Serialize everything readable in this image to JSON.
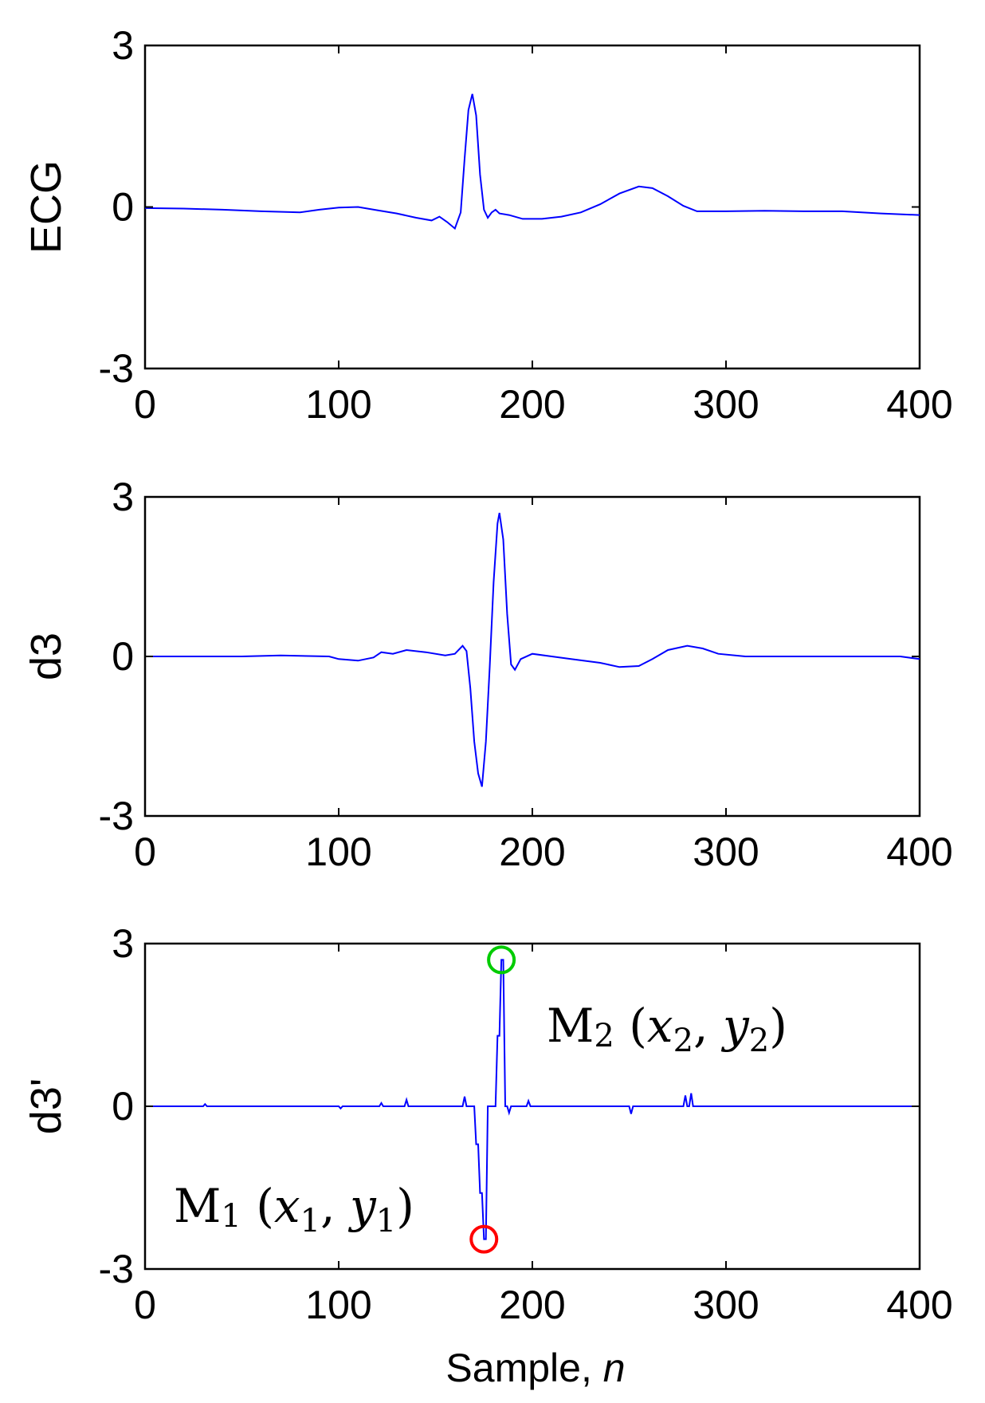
{
  "chart_data": [
    {
      "type": "line",
      "ylabel": "ECG",
      "xlabel": "",
      "xlim": [
        0,
        400
      ],
      "ylim": [
        -3,
        3
      ],
      "x_ticks": [
        "0",
        "100",
        "200",
        "300",
        "400"
      ],
      "y_ticks": [
        "-3",
        "0",
        "3"
      ],
      "grid": false,
      "series": [
        {
          "color": "#0000ff",
          "points": [
            [
              0,
              -0.02
            ],
            [
              20,
              -0.03
            ],
            [
              40,
              -0.05
            ],
            [
              60,
              -0.08
            ],
            [
              80,
              -0.1
            ],
            [
              90,
              -0.05
            ],
            [
              100,
              -0.01
            ],
            [
              110,
              0.0
            ],
            [
              120,
              -0.06
            ],
            [
              130,
              -0.12
            ],
            [
              140,
              -0.2
            ],
            [
              148,
              -0.25
            ],
            [
              152,
              -0.18
            ],
            [
              156,
              -0.28
            ],
            [
              160,
              -0.4
            ],
            [
              163,
              -0.1
            ],
            [
              165,
              0.9
            ],
            [
              167,
              1.8
            ],
            [
              169,
              2.1
            ],
            [
              171,
              1.7
            ],
            [
              173,
              0.6
            ],
            [
              175,
              -0.05
            ],
            [
              177,
              -0.2
            ],
            [
              179,
              -0.1
            ],
            [
              181,
              -0.05
            ],
            [
              183,
              -0.12
            ],
            [
              188,
              -0.15
            ],
            [
              195,
              -0.22
            ],
            [
              205,
              -0.22
            ],
            [
              215,
              -0.18
            ],
            [
              225,
              -0.1
            ],
            [
              235,
              0.05
            ],
            [
              245,
              0.25
            ],
            [
              255,
              0.38
            ],
            [
              262,
              0.35
            ],
            [
              270,
              0.2
            ],
            [
              278,
              0.02
            ],
            [
              285,
              -0.08
            ],
            [
              300,
              -0.08
            ],
            [
              320,
              -0.07
            ],
            [
              340,
              -0.08
            ],
            [
              360,
              -0.08
            ],
            [
              380,
              -0.12
            ],
            [
              400,
              -0.15
            ]
          ]
        }
      ],
      "annotations": []
    },
    {
      "type": "line",
      "ylabel": "d3",
      "xlabel": "",
      "xlim": [
        0,
        400
      ],
      "ylim": [
        -3,
        3
      ],
      "x_ticks": [
        "0",
        "100",
        "200",
        "300",
        "400"
      ],
      "y_ticks": [
        "-3",
        "0",
        "3"
      ],
      "grid": false,
      "series": [
        {
          "color": "#0000ff",
          "points": [
            [
              0,
              0.0
            ],
            [
              30,
              0.0
            ],
            [
              50,
              0.0
            ],
            [
              70,
              0.02
            ],
            [
              95,
              0.0
            ],
            [
              100,
              -0.05
            ],
            [
              110,
              -0.08
            ],
            [
              118,
              -0.02
            ],
            [
              122,
              0.08
            ],
            [
              128,
              0.05
            ],
            [
              135,
              0.12
            ],
            [
              145,
              0.08
            ],
            [
              155,
              0.02
            ],
            [
              160,
              0.05
            ],
            [
              164,
              0.2
            ],
            [
              166,
              0.1
            ],
            [
              168,
              -0.6
            ],
            [
              170,
              -1.6
            ],
            [
              172,
              -2.2
            ],
            [
              174,
              -2.45
            ],
            [
              176,
              -1.6
            ],
            [
              178,
              -0.2
            ],
            [
              180,
              1.4
            ],
            [
              182,
              2.5
            ],
            [
              183,
              2.7
            ],
            [
              185,
              2.2
            ],
            [
              187,
              0.8
            ],
            [
              189,
              -0.15
            ],
            [
              191,
              -0.25
            ],
            [
              194,
              -0.05
            ],
            [
              200,
              0.05
            ],
            [
              210,
              0.0
            ],
            [
              220,
              -0.05
            ],
            [
              235,
              -0.12
            ],
            [
              245,
              -0.2
            ],
            [
              255,
              -0.18
            ],
            [
              262,
              -0.05
            ],
            [
              270,
              0.12
            ],
            [
              280,
              0.2
            ],
            [
              288,
              0.15
            ],
            [
              296,
              0.05
            ],
            [
              310,
              0.0
            ],
            [
              340,
              0.0
            ],
            [
              370,
              0.0
            ],
            [
              390,
              0.0
            ],
            [
              400,
              -0.05
            ]
          ]
        }
      ],
      "annotations": []
    },
    {
      "type": "line",
      "ylabel": "d3'",
      "xlabel": "Sample, n",
      "xlim": [
        0,
        400
      ],
      "ylim": [
        -3,
        3
      ],
      "x_ticks": [
        "0",
        "100",
        "200",
        "300",
        "400"
      ],
      "y_ticks": [
        "-3",
        "0",
        "3"
      ],
      "grid": false,
      "series": [
        {
          "color": "#0000ff",
          "points": [
            [
              0,
              0.0
            ],
            [
              30,
              0.0
            ],
            [
              31,
              0.04
            ],
            [
              32,
              0.0
            ],
            [
              100,
              0.0
            ],
            [
              101,
              -0.04
            ],
            [
              102,
              0.0
            ],
            [
              121,
              0.0
            ],
            [
              122,
              0.06
            ],
            [
              123,
              0.0
            ],
            [
              134,
              0.0
            ],
            [
              135,
              0.12
            ],
            [
              136,
              0.0
            ],
            [
              164,
              0.0
            ],
            [
              165,
              0.18
            ],
            [
              166,
              0.0
            ],
            [
              170,
              0.0
            ],
            [
              171,
              -0.7
            ],
            [
              172,
              -0.7
            ],
            [
              173,
              -1.6
            ],
            [
              174,
              -1.6
            ],
            [
              175,
              -2.45
            ],
            [
              176,
              -2.45
            ],
            [
              177,
              0.0
            ],
            [
              181,
              0.0
            ],
            [
              182,
              1.3
            ],
            [
              183,
              1.3
            ],
            [
              184,
              2.7
            ],
            [
              185,
              2.7
            ],
            [
              186,
              0.0
            ],
            [
              187,
              0.0
            ],
            [
              188,
              -0.12
            ],
            [
              189,
              0.0
            ],
            [
              197,
              0.0
            ],
            [
              198,
              0.1
            ],
            [
              199,
              0.0
            ],
            [
              250,
              0.0
            ],
            [
              251,
              -0.14
            ],
            [
              252,
              0.0
            ],
            [
              278,
              0.0
            ],
            [
              279,
              0.2
            ],
            [
              280,
              0.0
            ],
            [
              281,
              0.0
            ],
            [
              282,
              0.24
            ],
            [
              283,
              0.0
            ],
            [
              290,
              0.0
            ],
            [
              400,
              0.0
            ]
          ]
        }
      ],
      "markers": [
        {
          "label": "M1",
          "x": 175,
          "y": -2.45,
          "color": "#ff0000"
        },
        {
          "label": "M2",
          "x": 184,
          "y": 2.7,
          "color": "#00cc00"
        }
      ],
      "annotations": [
        {
          "letter": "M",
          "sub": "1",
          "open": " (",
          "x_var": "x",
          "x_sub": "1",
          "sep": ", ",
          "y_var": "y",
          "y_sub": "1",
          "close": ")"
        },
        {
          "letter": "M",
          "sub": "2",
          "open": " (",
          "x_var": "x",
          "x_sub": "2",
          "sep": ", ",
          "y_var": "y",
          "y_sub": "2",
          "close": ")"
        }
      ]
    }
  ]
}
